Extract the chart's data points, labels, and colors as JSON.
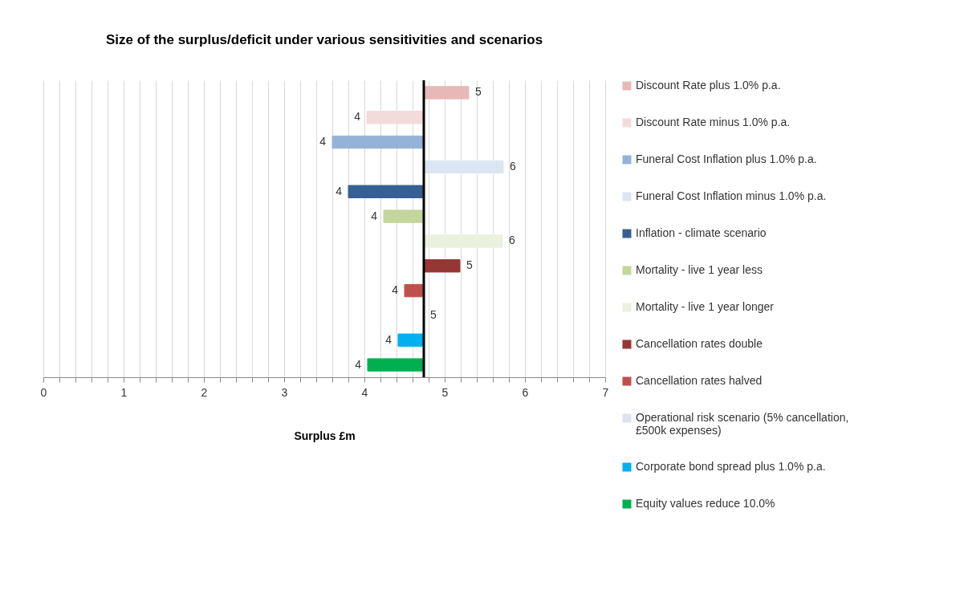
{
  "chart_data": {
    "type": "bar",
    "orientation": "horizontal",
    "title": "Size of the surplus/deficit under various sensitivities and scenarios",
    "xlabel": "Surplus £m",
    "categories": [
      null,
      null,
      null,
      null,
      null,
      null,
      null,
      null,
      null,
      null,
      null,
      null
    ],
    "series": [
      {
        "name": "Discount Rate plus 1.0% p.a.",
        "color": "#e6b9b8",
        "base": [
          4.74,
          null,
          null,
          null,
          null,
          null,
          null,
          null,
          null,
          null,
          null,
          null
        ],
        "values": [
          0.56,
          null,
          null,
          null,
          null,
          null,
          null,
          null,
          null,
          null,
          null,
          null
        ],
        "value_labels": [
          "5",
          null,
          null,
          null,
          null,
          null,
          null,
          null,
          null,
          null,
          null,
          null
        ]
      },
      {
        "name": "Discount Rate minus 1.0% p.a.",
        "color": "#f2dcdb",
        "base": [
          null,
          4.74,
          null,
          null,
          null,
          null,
          null,
          null,
          null,
          null,
          null,
          null
        ],
        "values": [
          null,
          -0.71,
          null,
          null,
          null,
          null,
          null,
          null,
          null,
          null,
          null,
          null
        ],
        "value_labels": [
          null,
          "4",
          null,
          null,
          null,
          null,
          null,
          null,
          null,
          null,
          null,
          null
        ]
      },
      {
        "name": "Funeral Cost Inflation plus 1.0% p.a.",
        "color": "#95b3d7",
        "base": [
          null,
          null,
          4.74,
          null,
          null,
          null,
          null,
          null,
          null,
          null,
          null,
          null
        ],
        "values": [
          null,
          null,
          -1.14,
          null,
          null,
          null,
          null,
          null,
          null,
          null,
          null,
          null
        ],
        "value_labels": [
          null,
          null,
          "4",
          null,
          null,
          null,
          null,
          null,
          null,
          null,
          null,
          null
        ]
      },
      {
        "name": "Funeral Cost Inflation minus 1.0% p.a.",
        "color": "#dce6f2",
        "base": [
          null,
          null,
          null,
          4.74,
          null,
          null,
          null,
          null,
          null,
          null,
          null,
          null
        ],
        "values": [
          null,
          null,
          null,
          0.99,
          null,
          null,
          null,
          null,
          null,
          null,
          null,
          null
        ],
        "value_labels": [
          null,
          null,
          null,
          "6",
          null,
          null,
          null,
          null,
          null,
          null,
          null,
          null
        ]
      },
      {
        "name": "Inflation - climate scenario",
        "color": "#376092",
        "base": [
          null,
          null,
          null,
          null,
          4.74,
          null,
          null,
          null,
          null,
          null,
          null,
          null
        ],
        "values": [
          null,
          null,
          null,
          null,
          -0.94,
          null,
          null,
          null,
          null,
          null,
          null,
          null
        ],
        "value_labels": [
          null,
          null,
          null,
          null,
          "4",
          null,
          null,
          null,
          null,
          null,
          null,
          null
        ]
      },
      {
        "name": "Mortality - live 1 year less",
        "color": "#c3d69b",
        "base": [
          null,
          null,
          null,
          null,
          null,
          4.74,
          null,
          null,
          null,
          null,
          null,
          null
        ],
        "values": [
          null,
          null,
          null,
          null,
          null,
          -0.5,
          null,
          null,
          null,
          null,
          null,
          null
        ],
        "value_labels": [
          null,
          null,
          null,
          null,
          null,
          "4",
          null,
          null,
          null,
          null,
          null,
          null
        ]
      },
      {
        "name": "Mortality - live 1 year longer",
        "color": "#ebf1de",
        "base": [
          null,
          null,
          null,
          null,
          null,
          null,
          4.74,
          null,
          null,
          null,
          null,
          null
        ],
        "values": [
          null,
          null,
          null,
          null,
          null,
          null,
          0.98,
          null,
          null,
          null,
          null,
          null
        ],
        "value_labels": [
          null,
          null,
          null,
          null,
          null,
          null,
          "6",
          null,
          null,
          null,
          null,
          null
        ]
      },
      {
        "name": "Cancellation rates double",
        "color": "#953735",
        "base": [
          null,
          null,
          null,
          null,
          null,
          null,
          null,
          4.74,
          null,
          null,
          null,
          null
        ],
        "values": [
          null,
          null,
          null,
          null,
          null,
          null,
          null,
          0.45,
          null,
          null,
          null,
          null
        ],
        "value_labels": [
          null,
          null,
          null,
          null,
          null,
          null,
          null,
          "5",
          null,
          null,
          null,
          null
        ]
      },
      {
        "name": "Cancellation rates halved",
        "color": "#c0504d",
        "base": [
          null,
          null,
          null,
          null,
          null,
          null,
          null,
          null,
          4.74,
          null,
          null,
          null
        ],
        "values": [
          null,
          null,
          null,
          null,
          null,
          null,
          null,
          null,
          -0.24,
          null,
          null,
          null
        ],
        "value_labels": [
          null,
          null,
          null,
          null,
          null,
          null,
          null,
          null,
          "4",
          null,
          null,
          null
        ]
      },
      {
        "name": "Operational risk scenario (5% cancellation, £500k expenses)",
        "color": "#dde3ee",
        "base": [
          null,
          null,
          null,
          null,
          null,
          null,
          null,
          null,
          null,
          4.74,
          null,
          null
        ],
        "values": [
          null,
          null,
          null,
          null,
          null,
          null,
          null,
          null,
          null,
          0,
          null,
          null
        ],
        "value_labels": [
          null,
          null,
          null,
          null,
          null,
          null,
          null,
          null,
          null,
          "5",
          null,
          null
        ]
      },
      {
        "name": "Corporate bond spread plus 1.0% p.a.",
        "color": "#00b0f0",
        "base": [
          null,
          null,
          null,
          null,
          null,
          null,
          null,
          null,
          null,
          null,
          4.74,
          null
        ],
        "values": [
          null,
          null,
          null,
          null,
          null,
          null,
          null,
          null,
          null,
          null,
          -0.32,
          null
        ],
        "value_labels": [
          null,
          null,
          null,
          null,
          null,
          null,
          null,
          null,
          null,
          null,
          "4",
          null
        ]
      },
      {
        "name": "Equity values reduce 10.0%",
        "color": "#00b050",
        "base": [
          null,
          null,
          null,
          null,
          null,
          null,
          null,
          null,
          null,
          null,
          null,
          4.74
        ],
        "values": [
          null,
          null,
          null,
          null,
          null,
          null,
          null,
          null,
          null,
          null,
          null,
          -0.7
        ],
        "value_labels": [
          null,
          null,
          null,
          null,
          null,
          null,
          null,
          null,
          null,
          null,
          null,
          "4"
        ]
      }
    ],
    "xlim": [
      0,
      7
    ],
    "xticks": [
      0,
      {
        "value": 0.2,
        "label": null
      },
      {
        "value": 0.4,
        "label": null
      },
      {
        "value": 0.6,
        "label": null
      },
      {
        "value": 0.8,
        "label": null
      },
      1,
      {
        "value": 1.2,
        "label": null
      },
      {
        "value": 1.4,
        "label": null
      },
      {
        "value": 1.6,
        "label": null
      },
      {
        "value": 1.8,
        "label": null
      },
      2,
      {
        "value": 2.2,
        "label": null
      },
      {
        "value": 2.4,
        "label": null
      },
      {
        "value": 2.6,
        "label": null
      },
      {
        "value": 2.8,
        "label": null
      },
      3,
      {
        "value": 3.2,
        "label": null
      },
      {
        "value": 3.4,
        "label": null
      },
      {
        "value": 3.6,
        "label": null
      },
      {
        "value": 3.8,
        "label": null
      },
      4,
      {
        "value": 4.2,
        "label": null
      },
      {
        "value": 4.4,
        "label": null
      },
      {
        "value": 4.6,
        "label": null
      },
      {
        "value": 4.8,
        "label": null
      },
      5,
      {
        "value": 5.2,
        "label": null
      },
      {
        "value": 5.4,
        "label": null
      },
      {
        "value": 5.6,
        "label": null
      },
      {
        "value": 5.8,
        "label": null
      },
      6,
      {
        "value": 6.2,
        "label": null
      },
      {
        "value": 6.4,
        "label": null
      },
      {
        "value": 6.6,
        "label": null
      },
      {
        "value": 6.8,
        "label": null
      },
      7
    ],
    "ref_lines": [
      {
        "axis": "x",
        "value": 4.74,
        "color": "#000000"
      }
    ],
    "grid": "x",
    "legend": "right",
    "tick_labels": "x"
  }
}
